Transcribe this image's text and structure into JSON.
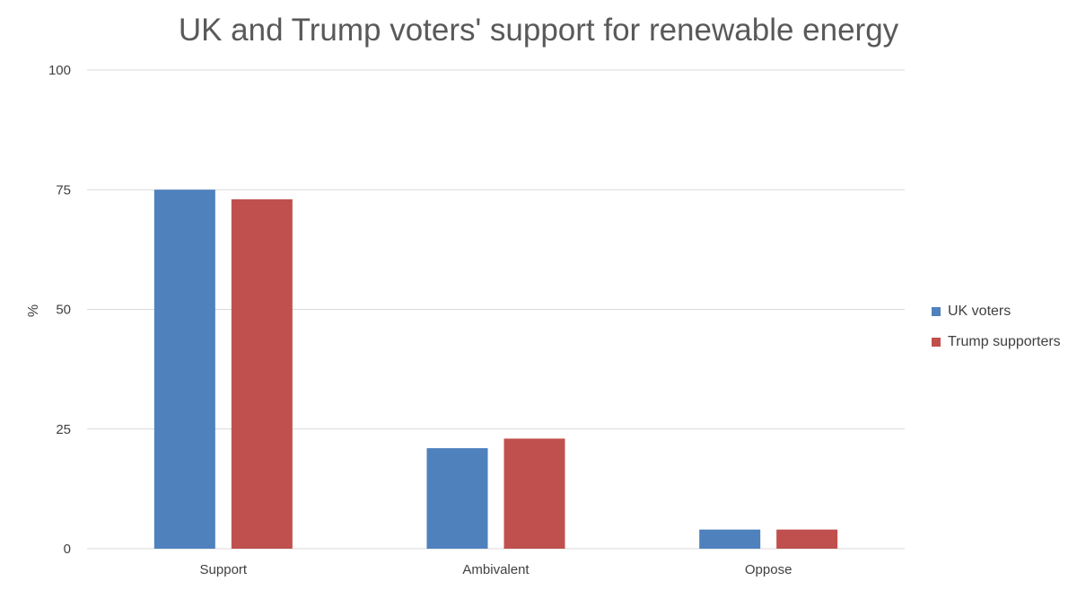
{
  "chart_data": {
    "type": "bar",
    "title": "UK and Trump voters' support for renewable energy",
    "xlabel": "",
    "ylabel": "%",
    "categories": [
      "Support",
      "Ambivalent",
      "Oppose"
    ],
    "series": [
      {
        "name": "UK voters",
        "color": "#4f81bd",
        "values": [
          75,
          21,
          4
        ]
      },
      {
        "name": "Trump supporters",
        "color": "#c0504d",
        "values": [
          73,
          23,
          4
        ]
      }
    ],
    "ylim": [
      0,
      100
    ],
    "yticks": [
      0,
      25,
      50,
      75,
      100
    ],
    "grid": true,
    "legend_position": "right"
  }
}
